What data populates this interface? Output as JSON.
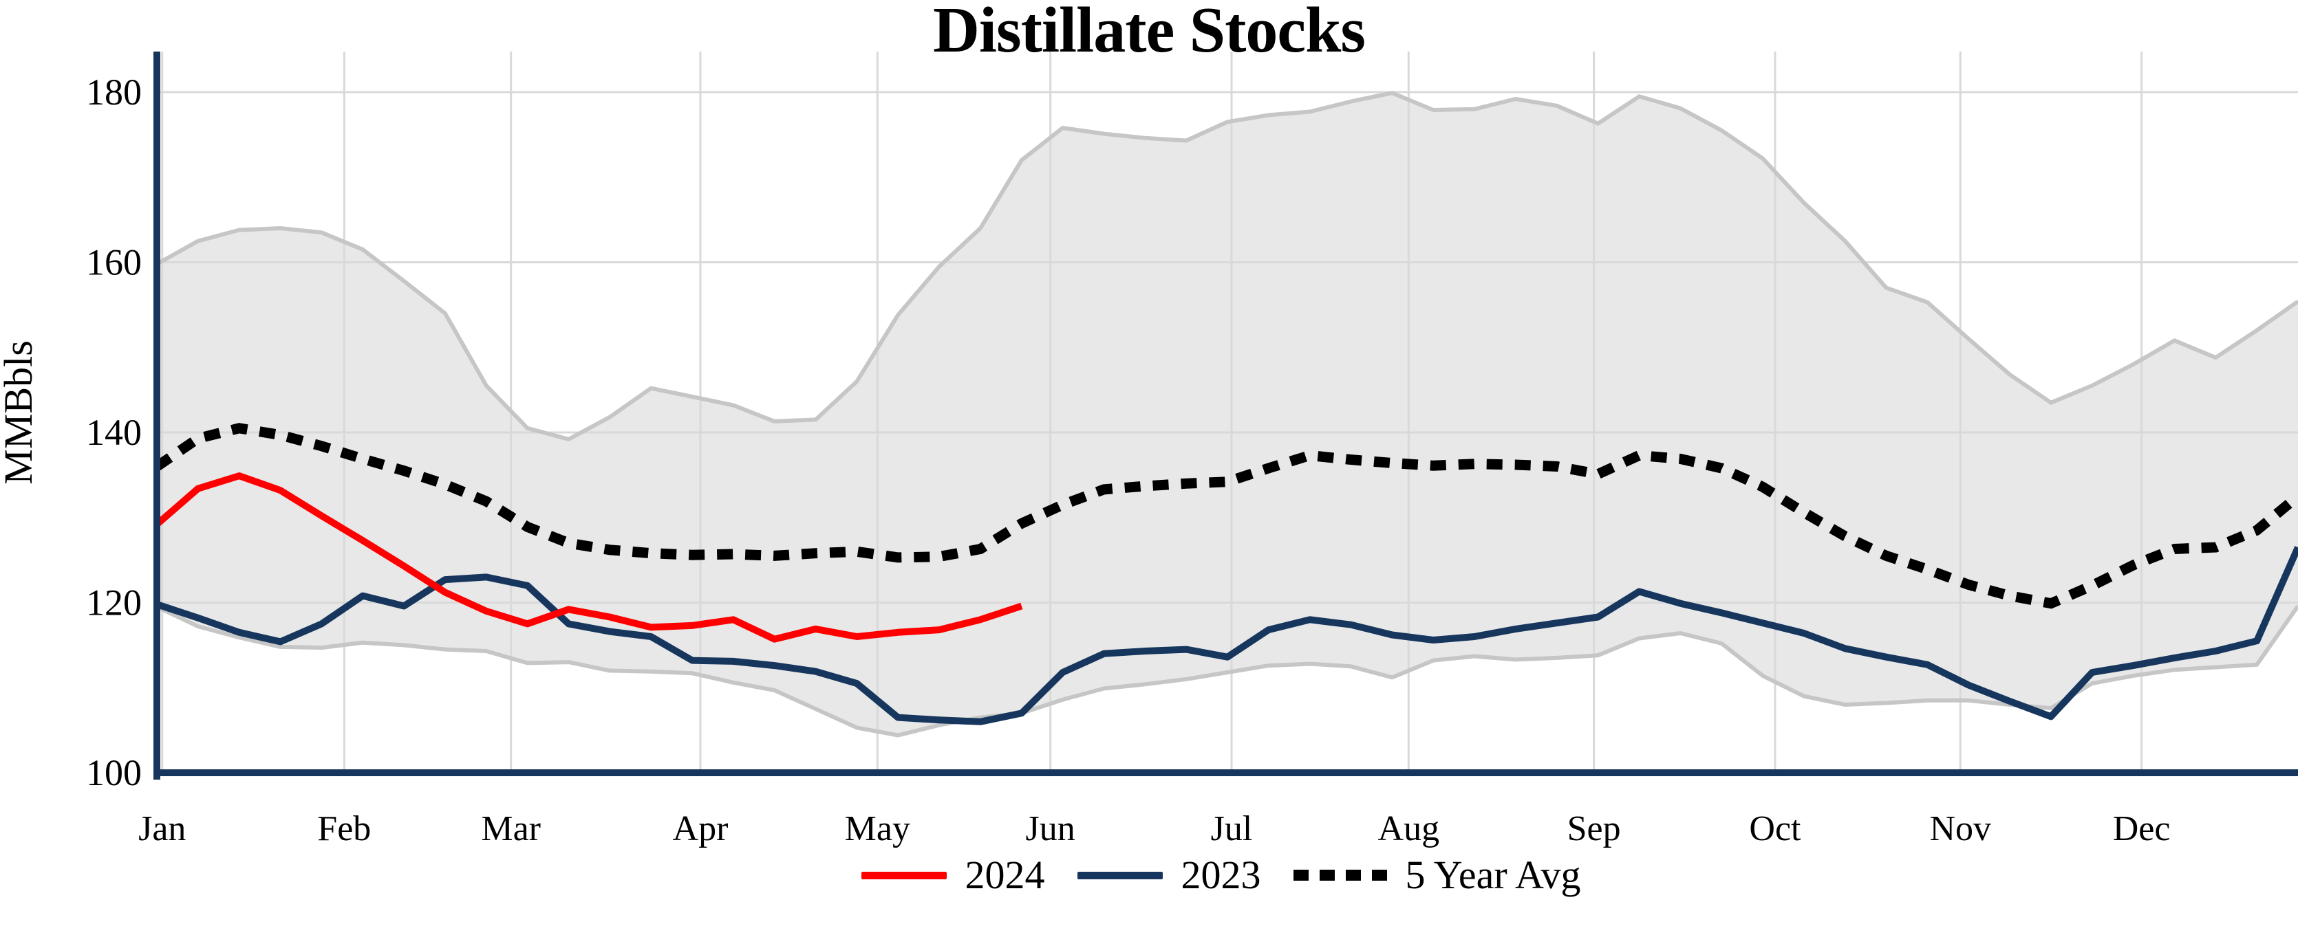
{
  "title": "Distillate Stocks",
  "chart_data": {
    "type": "line",
    "title": "Distillate Stocks",
    "ylabel": "MMBbls",
    "ylim": [
      100,
      185
    ],
    "y_ticks": [
      100,
      120,
      140,
      160,
      180
    ],
    "grid": true,
    "legend_position": "bottom",
    "x_unit": "weekly, Jan through Dec",
    "month_ticks": {
      "labels": [
        "Jan",
        "Feb",
        "Mar",
        "Apr",
        "May",
        "Jun",
        "Jul",
        "Aug",
        "Sep",
        "Oct",
        "Nov",
        "Dec"
      ],
      "week_positions": [
        0.13,
        4.55,
        8.6,
        13.2,
        17.5,
        21.7,
        26.1,
        30.4,
        34.9,
        39.3,
        43.8,
        48.2
      ]
    },
    "colors": {
      "red_2024": "#ff0000",
      "navy_2023": "#17365d",
      "avg_dotted": "#000000",
      "band_fill": "#e8e8e8",
      "band_edge": "#c6c6c6",
      "grid": "#d9d9d9",
      "axis": "#17365d"
    },
    "band": {
      "name": "5 Year Range",
      "max": [
        159.8,
        162.5,
        163.8,
        164.0,
        163.5,
        161.5,
        157.8,
        154.0,
        145.5,
        140.5,
        139.2,
        141.8,
        145.2,
        144.2,
        143.2,
        141.3,
        141.5,
        146.0,
        153.8,
        159.5,
        164.0,
        172.0,
        175.8,
        175.1,
        174.6,
        174.3,
        176.5,
        177.3,
        177.7,
        178.9,
        179.9,
        177.9,
        178.0,
        179.2,
        178.4,
        176.3,
        179.5,
        178.1,
        175.5,
        172.2,
        167.0,
        162.5,
        157.0,
        155.3,
        151.0,
        146.8,
        143.5,
        145.5,
        148.0,
        150.8,
        148.8,
        152.0,
        155.4
      ],
      "min": [
        119.5,
        117.2,
        115.9,
        114.8,
        114.7,
        115.3,
        115.0,
        114.5,
        114.3,
        112.9,
        113.0,
        112.0,
        111.9,
        111.7,
        110.6,
        109.7,
        107.5,
        105.3,
        104.4,
        105.6,
        106.5,
        107.0,
        108.6,
        109.9,
        110.4,
        111.0,
        111.8,
        112.6,
        112.8,
        112.5,
        111.2,
        113.2,
        113.7,
        113.3,
        113.5,
        113.8,
        115.8,
        116.4,
        115.2,
        111.4,
        109.0,
        108.0,
        108.2,
        108.5,
        108.5,
        108.0,
        107.6,
        110.5,
        111.4,
        112.1,
        112.4,
        112.7,
        119.6
      ]
    },
    "series": [
      {
        "name": "2024",
        "style": "solid",
        "color": "#ff0000",
        "values": [
          129.2,
          133.4,
          134.9,
          133.2,
          130.2,
          127.3,
          124.3,
          121.2,
          119.0,
          117.5,
          119.2,
          118.3,
          117.1,
          117.3,
          118.0,
          115.7,
          116.9,
          116.0,
          116.5,
          116.8,
          118.0,
          119.6
        ]
      },
      {
        "name": "2023",
        "style": "solid",
        "color": "#17365d",
        "values": [
          119.8,
          118.2,
          116.5,
          115.4,
          117.5,
          120.8,
          119.6,
          122.7,
          123.0,
          122.0,
          117.5,
          116.6,
          116.0,
          113.2,
          113.1,
          112.6,
          111.9,
          110.5,
          106.5,
          106.2,
          106.0,
          107.0,
          111.8,
          114.0,
          114.3,
          114.5,
          113.6,
          116.8,
          118.0,
          117.4,
          116.2,
          115.6,
          116.0,
          116.9,
          117.6,
          118.3,
          121.3,
          119.9,
          118.8,
          117.6,
          116.4,
          114.6,
          113.6,
          112.7,
          110.3,
          108.4,
          106.6,
          111.8,
          112.6,
          113.5,
          114.3,
          115.5,
          126.5
        ]
      },
      {
        "name": "5 Year Avg",
        "style": "dotted",
        "color": "#000000",
        "values": [
          136.0,
          139.3,
          140.5,
          139.7,
          138.4,
          136.9,
          135.5,
          133.9,
          131.9,
          128.9,
          127.0,
          126.2,
          125.8,
          125.6,
          125.7,
          125.5,
          125.8,
          126.0,
          125.3,
          125.4,
          126.3,
          129.3,
          131.5,
          133.3,
          133.7,
          134.0,
          134.2,
          135.8,
          137.3,
          136.8,
          136.4,
          136.1,
          136.3,
          136.2,
          136.0,
          135.1,
          137.3,
          136.9,
          135.8,
          133.6,
          130.6,
          127.8,
          125.5,
          123.9,
          122.1,
          120.8,
          119.9,
          122.0,
          124.4,
          126.3,
          126.5,
          128.5,
          132.5
        ]
      }
    ]
  }
}
